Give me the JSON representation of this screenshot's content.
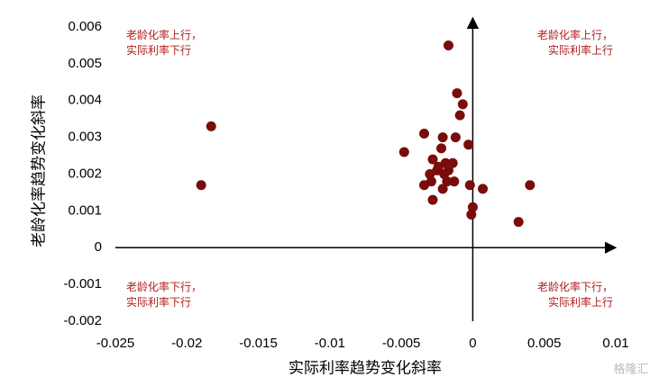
{
  "chart_data": {
    "type": "scatter",
    "xlabel": "实际利率趋势变化斜率",
    "ylabel": "老龄化率趋势变化斜率",
    "x": [
      -0.0017,
      -0.0183,
      -0.019,
      -0.0011,
      -0.0007,
      -0.0009,
      -0.0034,
      -0.0021,
      -0.0012,
      -0.0003,
      -0.0048,
      -0.0022,
      -0.0028,
      -0.0024,
      -0.0019,
      -0.0014,
      -0.0025,
      -0.003,
      -0.002,
      -0.0017,
      -0.0018,
      -0.0029,
      -0.0034,
      -0.0013,
      -0.0021,
      -0.0002,
      0.0007,
      0.004,
      -0.0028,
      0.0,
      -0.0001,
      0.0032
    ],
    "values": [
      0.0055,
      0.0033,
      0.0017,
      0.0042,
      0.0039,
      0.0036,
      0.0031,
      0.003,
      0.003,
      0.0028,
      0.0026,
      0.0027,
      0.0024,
      0.0022,
      0.0023,
      0.0023,
      0.0021,
      0.002,
      0.002,
      0.0021,
      0.0018,
      0.0018,
      0.0017,
      0.0018,
      0.0016,
      0.0017,
      0.0016,
      0.0017,
      0.0013,
      0.0011,
      0.0009,
      0.0007
    ],
    "color": "#7a0c0c",
    "xlim": [
      -0.025,
      0.01
    ],
    "xticks": [
      -0.025,
      -0.02,
      -0.015,
      -0.01,
      -0.005,
      0,
      0.005,
      0.01
    ],
    "ylim": [
      -0.002,
      0.006
    ],
    "yticks": [
      -0.002,
      -0.001,
      0,
      0.001,
      0.002,
      0.003,
      0.004,
      0.005,
      0.006
    ],
    "annotations": [
      {
        "lines": [
          "老龄化率上行，",
          "实际利率下行"
        ]
      },
      {
        "lines": [
          "老龄化率上行，",
          "实际利率上行"
        ]
      },
      {
        "lines": [
          "老龄化率下行，",
          "实际利率下行"
        ]
      },
      {
        "lines": [
          "老龄化率下行，",
          "实际利率上行"
        ]
      }
    ],
    "watermark": "格隆汇"
  }
}
